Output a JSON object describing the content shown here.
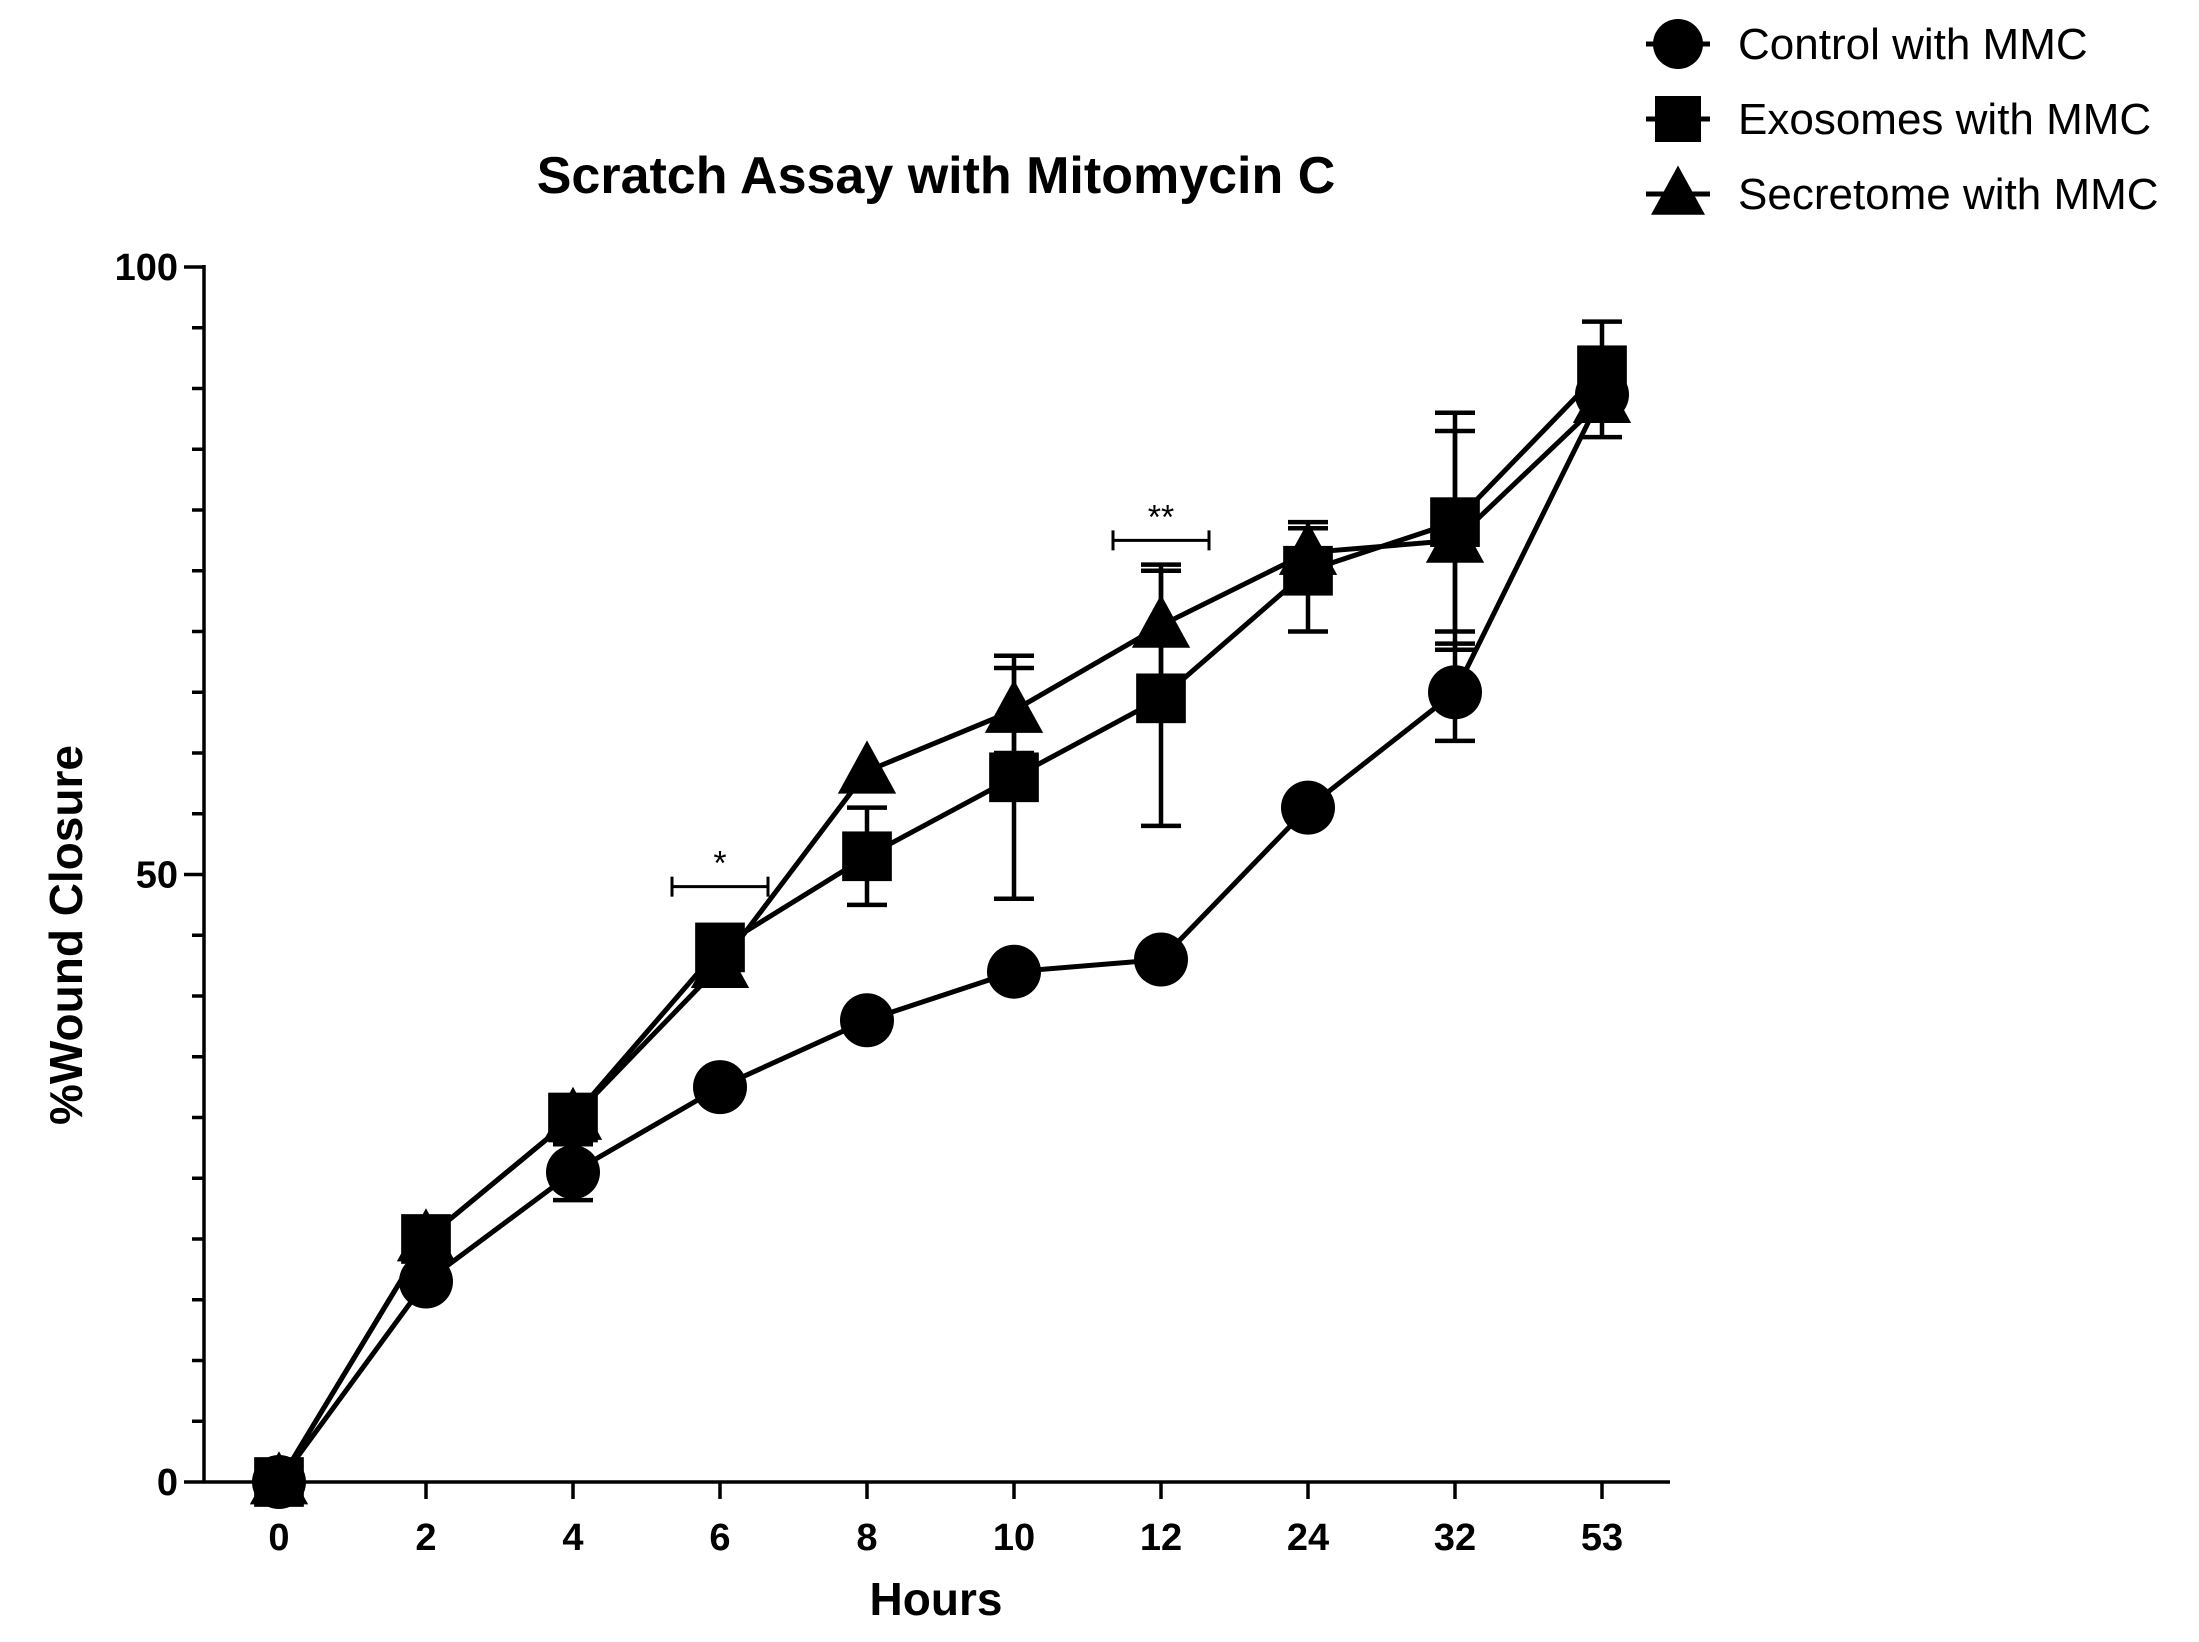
{
  "chart_data": {
    "type": "line",
    "title": "Scratch Assay with Mitomycin C",
    "xlabel": "Hours",
    "ylabel": "%Wound Closure",
    "categories": [
      "0",
      "2",
      "4",
      "6",
      "8",
      "10",
      "12",
      "24",
      "32",
      "53"
    ],
    "ylim": [
      0,
      100
    ],
    "yticks_labeled": [
      "0",
      "50",
      "100"
    ],
    "y_minor_tick_step": 5,
    "x_axis_scale": "categorical (equally spaced)",
    "legend_position": "top-right",
    "series": [
      {
        "name": "Control with MMC",
        "marker": "circle",
        "values": [
          0,
          16.5,
          25.5,
          32.5,
          38,
          42,
          43,
          55.5,
          65,
          89.5
        ],
        "error_upper": [
          null,
          null,
          2.3,
          null,
          null,
          null,
          null,
          null,
          4,
          3.5
        ],
        "error_lower": [
          null,
          null,
          2.3,
          null,
          null,
          null,
          null,
          null,
          4,
          3.5
        ]
      },
      {
        "name": "Exosomes with MMC",
        "marker": "square",
        "values": [
          0,
          20,
          30,
          44,
          51.5,
          58,
          64.5,
          75,
          79,
          91.5
        ],
        "error_upper": [
          null,
          null,
          null,
          null,
          4,
          10,
          10.5,
          3.5,
          9,
          4
        ],
        "error_lower": [
          null,
          null,
          null,
          null,
          4,
          10,
          10.5,
          5,
          9,
          4
        ]
      },
      {
        "name": "Secretome with MMC",
        "marker": "triangle",
        "values": [
          0,
          20,
          30,
          42.5,
          58.5,
          63.5,
          70.5,
          76.5,
          77.5,
          89
        ],
        "error_upper": [
          null,
          null,
          null,
          null,
          null,
          3.5,
          5,
          2.5,
          9,
          null
        ],
        "error_lower": [
          null,
          null,
          null,
          null,
          null,
          3.5,
          5,
          2.5,
          9,
          null
        ]
      }
    ],
    "annotations": [
      {
        "text": "*",
        "x_from": "6",
        "x_to": "6",
        "y": 49
      },
      {
        "text": "**",
        "x_from": "12",
        "x_to": "12",
        "y": 77.5
      }
    ]
  }
}
